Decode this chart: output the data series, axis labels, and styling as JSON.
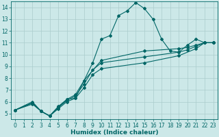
{
  "xlabel": "Humidex (Indice chaleur)",
  "bg_color": "#cce8e8",
  "grid_color": "#aacccc",
  "line_color": "#006666",
  "xlim": [
    -0.5,
    23.5
  ],
  "ylim": [
    4.5,
    14.5
  ],
  "xticks": [
    0,
    1,
    2,
    3,
    4,
    5,
    6,
    7,
    8,
    9,
    10,
    11,
    12,
    13,
    14,
    15,
    16,
    17,
    18,
    19,
    20,
    21,
    22,
    23
  ],
  "yticks": [
    5,
    6,
    7,
    8,
    9,
    10,
    11,
    12,
    13,
    14
  ],
  "lines": [
    {
      "x": [
        0,
        2,
        3,
        4,
        5,
        6,
        7,
        8,
        9,
        10,
        11,
        12,
        13,
        14,
        15,
        16,
        17,
        18,
        19,
        20,
        21,
        22,
        23
      ],
      "y": [
        5.3,
        6.0,
        5.2,
        4.8,
        5.5,
        6.2,
        6.3,
        7.8,
        9.3,
        11.3,
        11.6,
        13.3,
        13.7,
        14.4,
        13.9,
        13.0,
        11.3,
        10.3,
        10.2,
        10.8,
        11.3,
        11.0,
        11.0
      ]
    },
    {
      "x": [
        0,
        2,
        3,
        4,
        5,
        6,
        7,
        8,
        10,
        15,
        19,
        20,
        21,
        22,
        23
      ],
      "y": [
        5.3,
        5.9,
        5.2,
        4.8,
        5.6,
        6.2,
        6.6,
        7.8,
        9.5,
        10.3,
        10.5,
        10.6,
        10.8,
        11.0,
        11.0
      ]
    },
    {
      "x": [
        0,
        2,
        3,
        4,
        5,
        6,
        7,
        8,
        9,
        10,
        15,
        19,
        20,
        21,
        22,
        23
      ],
      "y": [
        5.3,
        5.9,
        5.2,
        4.8,
        5.5,
        6.1,
        6.5,
        7.5,
        8.7,
        9.3,
        9.8,
        10.2,
        10.4,
        10.7,
        11.0,
        11.0
      ]
    },
    {
      "x": [
        0,
        2,
        3,
        4,
        5,
        6,
        7,
        8,
        9,
        10,
        15,
        19,
        21,
        22,
        23
      ],
      "y": [
        5.3,
        5.8,
        5.2,
        4.8,
        5.4,
        6.0,
        6.3,
        7.2,
        8.3,
        8.8,
        9.3,
        9.9,
        10.5,
        11.0,
        11.0
      ]
    }
  ],
  "marker": "D",
  "marker_size": 2.0,
  "line_width": 0.8,
  "font_size_label": 6.5,
  "font_size_tick": 5.5
}
